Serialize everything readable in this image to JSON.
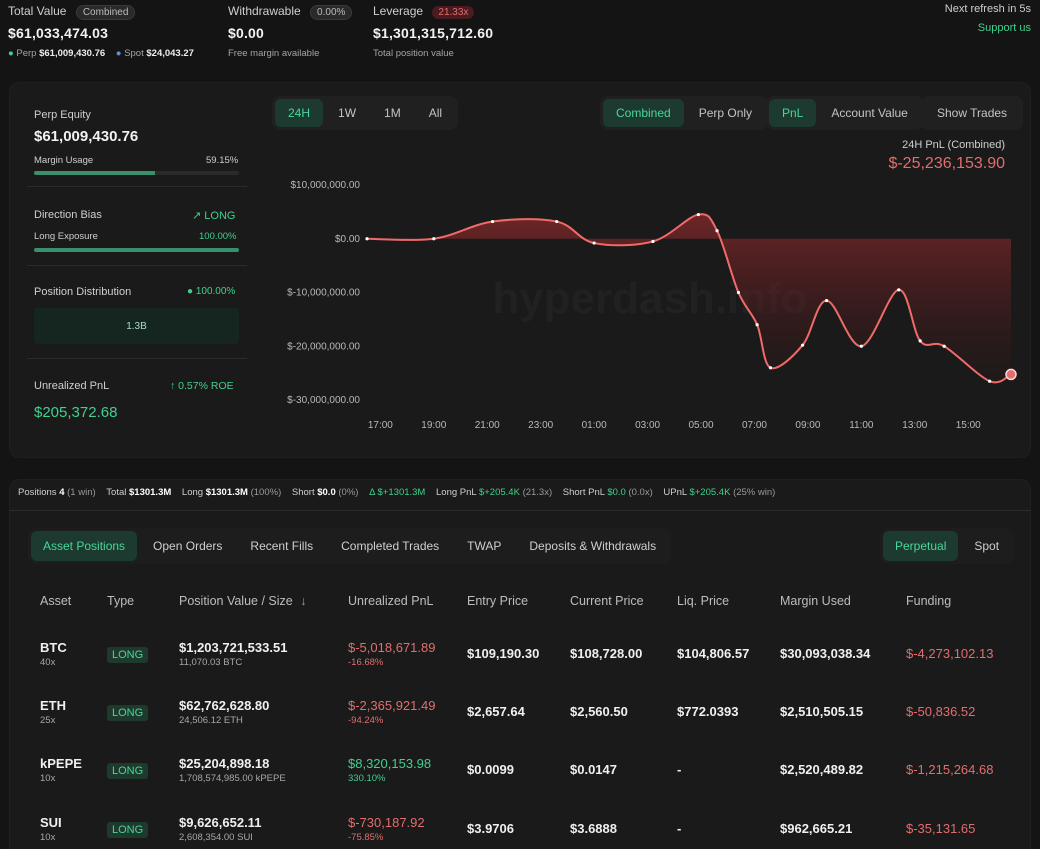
{
  "summary": {
    "total_value_label": "Total Value",
    "total_value_badge": "Combined",
    "total_value": "$61,033,474.03",
    "perp_label": "Perp",
    "perp_value": "$61,009,430.76",
    "spot_label": "Spot",
    "spot_value": "$24,043.27",
    "withdrawable_label": "Withdrawable",
    "withdrawable_badge": "0.00%",
    "withdrawable_value": "$0.00",
    "withdrawable_sub": "Free margin available",
    "leverage_label": "Leverage",
    "leverage_badge": "21.33x",
    "leverage_value": "$1,301,315,712.60",
    "leverage_sub": "Total position value",
    "refresh_text": "Next refresh in 5s",
    "support_link": "Support us"
  },
  "left_panel": {
    "perp_equity_label": "Perp Equity",
    "perp_equity_value": "$61,009,430.76",
    "margin_usage_label": "Margin Usage",
    "margin_usage_value": "59.15%",
    "margin_usage_fraction": 0.5915,
    "direction_bias_label": "Direction Bias",
    "direction_bias_value": "LONG",
    "long_exposure_label": "Long Exposure",
    "long_exposure_value": "100.00%",
    "long_exposure_fraction": 1.0,
    "position_distribution_label": "Position Distribution",
    "position_distribution_value": "100.00%",
    "distribution_bar_value": "1.3B",
    "unrealized_pnl_label": "Unrealized PnL",
    "roe_value": "0.57% ROE",
    "unrealized_pnl_value": "$205,372.68"
  },
  "chart_controls": {
    "ranges": [
      "24H",
      "1W",
      "1M",
      "All"
    ],
    "active_range": "24H",
    "modes": [
      "Combined",
      "Perp Only"
    ],
    "active_mode": "Combined",
    "metrics": [
      "PnL",
      "Account Value"
    ],
    "active_metric": "PnL",
    "show_trades": "Show Trades"
  },
  "chart_data": {
    "type": "area",
    "title": "24H PnL (Combined)",
    "headline_value": "$-25,236,153.90",
    "watermark": "hyperdash.info",
    "x_ticks": [
      "17:00",
      "19:00",
      "21:00",
      "23:00",
      "01:00",
      "03:00",
      "05:00",
      "07:00",
      "09:00",
      "11:00",
      "13:00",
      "15:00"
    ],
    "y_ticks": [
      "$10,000,000.00",
      "$0.00",
      "$-10,000,000.00",
      "$-20,000,000.00",
      "$-30,000,000.00"
    ],
    "y_tick_values": [
      10000000,
      0,
      -10000000,
      -20000000,
      -30000000
    ],
    "ylim": [
      -30000000,
      10000000
    ],
    "xlim_hours": [
      16.5,
      40.6
    ],
    "series": [
      {
        "x_hours": [
          16.5,
          19.0,
          21.2,
          23.6,
          25.0,
          27.2,
          28.9,
          29.6,
          30.4,
          31.1,
          31.6,
          32.8,
          33.7,
          35.0,
          36.4,
          37.2,
          38.1,
          39.8,
          40.6
        ],
        "values": [
          0,
          0,
          3200000,
          3200000,
          -800000,
          -500000,
          4500000,
          1500000,
          -10000000,
          -16000000,
          -24000000,
          -19800000,
          -11500000,
          -20000000,
          -9500000,
          -19000000,
          -20000000,
          -26500000,
          -25236153.9
        ]
      }
    ]
  },
  "positions_summary": {
    "positions_label": "Positions",
    "positions_count": "4",
    "positions_win": "(1 win)",
    "total_label": "Total",
    "total_value": "$1301.3M",
    "long_label": "Long",
    "long_value": "$1301.3M",
    "long_pct": "(100%)",
    "short_label": "Short",
    "short_value": "$0.0",
    "short_pct": "(0%)",
    "delta_label": "Δ",
    "delta_value": "$+1301.3M",
    "long_pnl_label": "Long PnL",
    "long_pnl_value": "$+205.4K",
    "long_pnl_lev": "(21.3x)",
    "short_pnl_label": "Short PnL",
    "short_pnl_value": "$0.0",
    "short_pnl_lev": "(0.0x)",
    "upnl_label": "UPnL",
    "upnl_value": "$+205.4K",
    "upnl_win": "(25% win)"
  },
  "tabs": [
    "Asset Positions",
    "Open Orders",
    "Recent Fills",
    "Completed Trades",
    "TWAP",
    "Deposits & Withdrawals"
  ],
  "active_tab": "Asset Positions",
  "market_toggle": [
    "Perpetual",
    "Spot"
  ],
  "active_market": "Perpetual",
  "table": {
    "headers": [
      "Asset",
      "Type",
      "Position Value / Size",
      "Unrealized PnL",
      "Entry Price",
      "Current Price",
      "Liq. Price",
      "Margin Used",
      "Funding"
    ],
    "sort_icon": "↓",
    "rows": [
      {
        "asset": "BTC",
        "lev": "40x",
        "type": "LONG",
        "value": "$1,203,721,533.51",
        "size": "11,070.03 BTC",
        "pnl": "$-5,018,671.89",
        "pnl_pct": "-16.68%",
        "pnl_sign": "neg",
        "entry": "$109,190.30",
        "current": "$108,728.00",
        "liq": "$104,806.57",
        "margin": "$30,093,038.34",
        "funding": "$-4,273,102.13"
      },
      {
        "asset": "ETH",
        "lev": "25x",
        "type": "LONG",
        "value": "$62,762,628.80",
        "size": "24,506.12 ETH",
        "pnl": "$-2,365,921.49",
        "pnl_pct": "-94.24%",
        "pnl_sign": "neg",
        "entry": "$2,657.64",
        "current": "$2,560.50",
        "liq": "$772.0393",
        "margin": "$2,510,505.15",
        "funding": "$-50,836.52"
      },
      {
        "asset": "kPEPE",
        "lev": "10x",
        "type": "LONG",
        "value": "$25,204,898.18",
        "size": "1,708,574,985.00 kPEPE",
        "pnl": "$8,320,153.98",
        "pnl_pct": "330.10%",
        "pnl_sign": "pos",
        "entry": "$0.0099",
        "current": "$0.0147",
        "liq": "-",
        "margin": "$2,520,489.82",
        "funding": "$-1,215,264.68"
      },
      {
        "asset": "SUI",
        "lev": "10x",
        "type": "LONG",
        "value": "$9,626,652.11",
        "size": "2,608,354.00 SUI",
        "pnl": "$-730,187.92",
        "pnl_pct": "-75.85%",
        "pnl_sign": "neg",
        "entry": "$3.9706",
        "current": "$3.6888",
        "liq": "-",
        "margin": "$962,665.21",
        "funding": "$-35,131.65"
      }
    ]
  },
  "colors": {
    "accent": "#3fd18e",
    "negative": "#e36d6d",
    "chart_line": "#f06a6a"
  }
}
